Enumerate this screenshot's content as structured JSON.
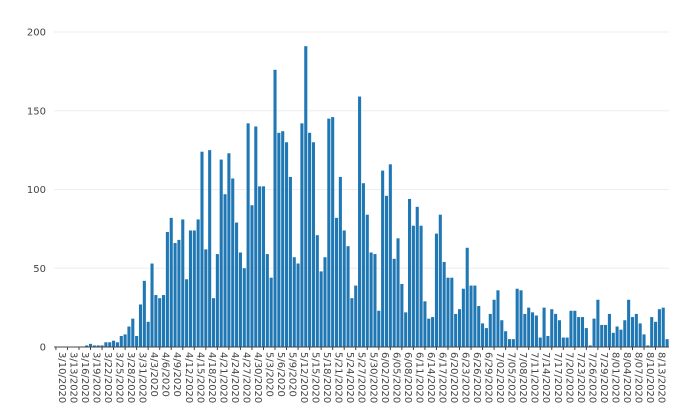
{
  "chart_data": {
    "type": "bar",
    "title": "",
    "xlabel": "",
    "ylabel": "",
    "ylim": [
      0,
      200
    ],
    "y_ticks": [
      0,
      50,
      100,
      150,
      200
    ],
    "grid": true,
    "bar_color": "#1f77b4",
    "x_start": "2020-03-10",
    "x_tick_labels": [
      "3/10/2020",
      "3/13/2020",
      "3/16/2020",
      "3/19/2020",
      "3/22/2020",
      "3/25/2020",
      "3/28/2020",
      "3/31/2020",
      "4/3/2020",
      "4/6/2020",
      "4/9/2020",
      "4/12/2020",
      "4/15/2020",
      "4/18/2020",
      "4/21/2020",
      "4/24/2020",
      "4/27/2020",
      "4/30/2020",
      "5/3/2020",
      "5/6/2020",
      "5/9/2020",
      "5/12/2020",
      "5/15/2020",
      "5/18/2020",
      "5/21/2020",
      "5/24/2020",
      "5/27/2020",
      "5/30/2020",
      "6/02/2020",
      "6/05/2020",
      "6/08/2020",
      "6/11/2020",
      "6/14/2020",
      "6/17/2020",
      "6/20/2020",
      "6/23/2020",
      "6/26/2020",
      "6/29/2020",
      "7/02/2020",
      "7/05/2020",
      "7/08/2020",
      "7/11/2020",
      "7/14/2020",
      "7/17/2020",
      "7/20/2020",
      "7/23/2020",
      "7/26/2020",
      "7/29/2020",
      "8/01/2020",
      "8/04/2020",
      "8/07/2020",
      "8/10/2020",
      "8/13/2020"
    ],
    "values": [
      0,
      0,
      0,
      0,
      0,
      0,
      0,
      0,
      1,
      2,
      1,
      1,
      1,
      3,
      3,
      4,
      3,
      7,
      8,
      13,
      18,
      7,
      27,
      42,
      16,
      53,
      33,
      31,
      33,
      73,
      82,
      66,
      68,
      81,
      43,
      74,
      74,
      81,
      124,
      62,
      125,
      31,
      59,
      119,
      97,
      123,
      107,
      79,
      60,
      50,
      142,
      90,
      140,
      102,
      102,
      59,
      44,
      176,
      136,
      137,
      130,
      108,
      57,
      53,
      142,
      191,
      136,
      130,
      71,
      48,
      57,
      145,
      146,
      82,
      108,
      74,
      64,
      31,
      39,
      159,
      104,
      84,
      60,
      59,
      23,
      112,
      96,
      116,
      56,
      69,
      40,
      22,
      94,
      77,
      89,
      77,
      29,
      18,
      19,
      72,
      84,
      54,
      44,
      44,
      21,
      24,
      37,
      63,
      39,
      39,
      26,
      15,
      12,
      21,
      30,
      36,
      17,
      10,
      5,
      5,
      37,
      36,
      21,
      25,
      22,
      20,
      6,
      25,
      7,
      24,
      21,
      17,
      6,
      6,
      23,
      23,
      19,
      19,
      12,
      1,
      18,
      30,
      14,
      14,
      21,
      9,
      13,
      11,
      17,
      30,
      19,
      21,
      15,
      8,
      1,
      19,
      16,
      24,
      25,
      5
    ]
  }
}
